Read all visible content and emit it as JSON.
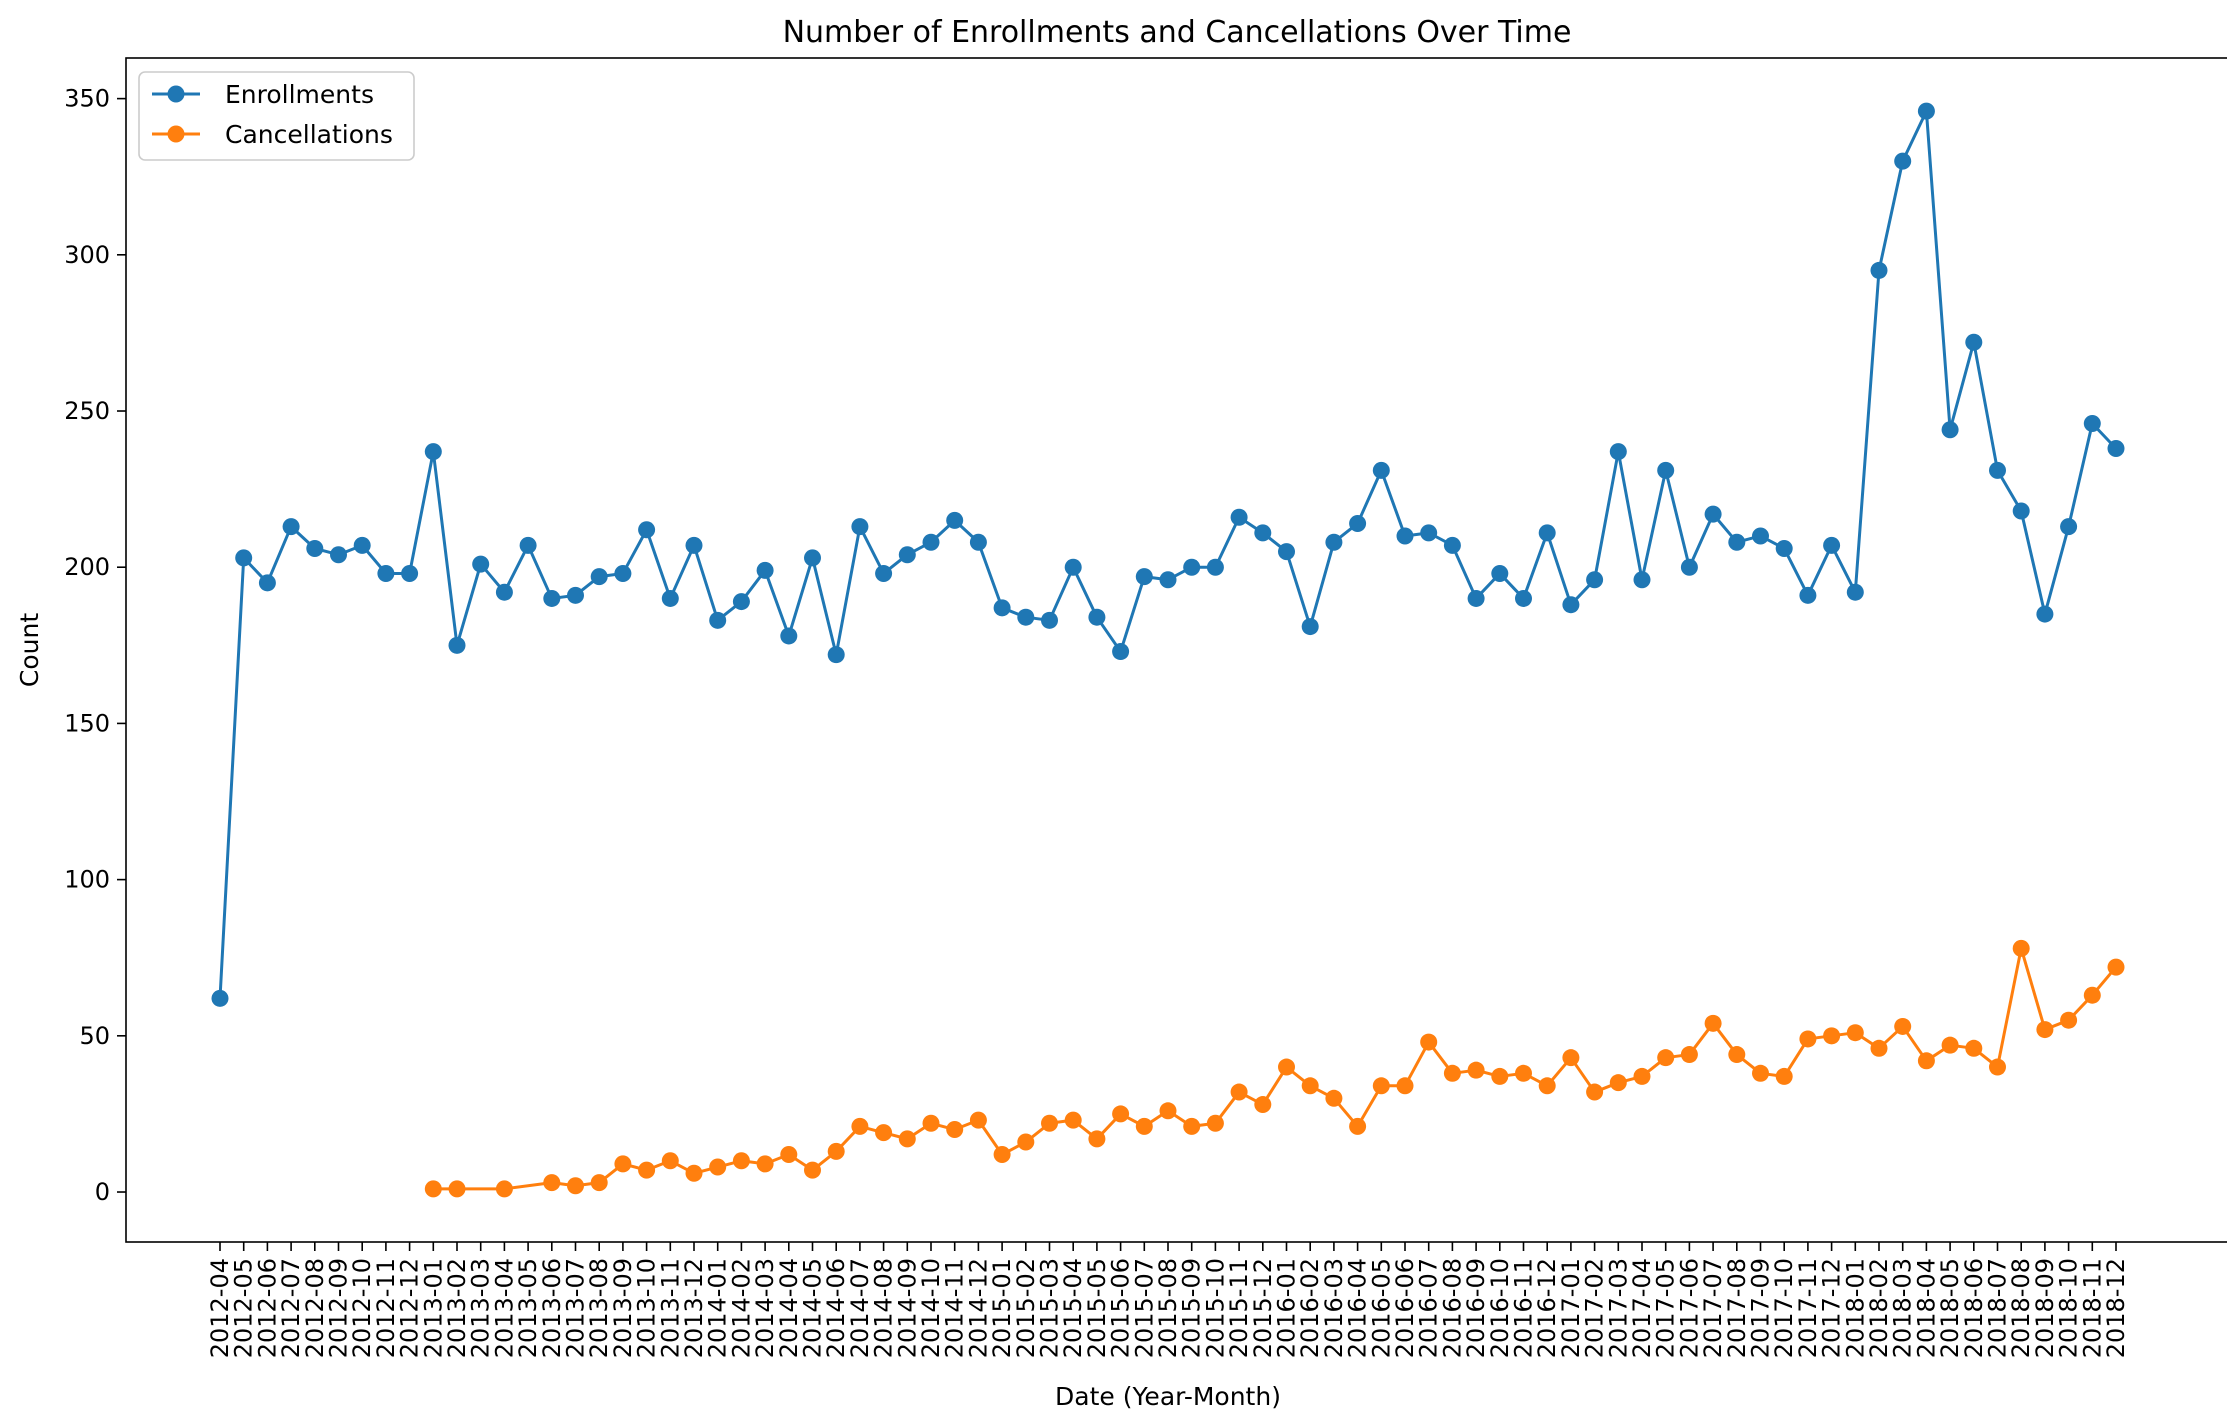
{
  "chart_data": {
    "type": "line",
    "title": "Number of Enrollments and Cancellations Over Time",
    "xlabel": "Date (Year-Month)",
    "ylabel": "Count",
    "ylim": [
      -16,
      363
    ],
    "yticks": [
      0,
      50,
      100,
      150,
      200,
      250,
      300,
      350
    ],
    "grid": false,
    "legend_position": "top-left",
    "categories": [
      "2012-04",
      "2012-05",
      "2012-06",
      "2012-07",
      "2012-08",
      "2012-09",
      "2012-10",
      "2012-11",
      "2012-12",
      "2013-01",
      "2013-02",
      "2013-03",
      "2013-04",
      "2013-05",
      "2013-06",
      "2013-07",
      "2013-08",
      "2013-09",
      "2013-10",
      "2013-11",
      "2013-12",
      "2014-01",
      "2014-02",
      "2014-03",
      "2014-04",
      "2014-05",
      "2014-06",
      "2014-07",
      "2014-08",
      "2014-09",
      "2014-10",
      "2014-11",
      "2014-12",
      "2015-01",
      "2015-02",
      "2015-03",
      "2015-04",
      "2015-05",
      "2015-06",
      "2015-07",
      "2015-08",
      "2015-09",
      "2015-10",
      "2015-11",
      "2015-12",
      "2016-01",
      "2016-02",
      "2016-03",
      "2016-04",
      "2016-05",
      "2016-06",
      "2016-07",
      "2016-08",
      "2016-09",
      "2016-10",
      "2016-11",
      "2016-12",
      "2017-01",
      "2017-02",
      "2017-03",
      "2017-04",
      "2017-05",
      "2017-06",
      "2017-07",
      "2017-08",
      "2017-09",
      "2017-10",
      "2017-11",
      "2017-12",
      "2018-01",
      "2018-02",
      "2018-03",
      "2018-04",
      "2018-05",
      "2018-06",
      "2018-07",
      "2018-08",
      "2018-09",
      "2018-10",
      "2018-11",
      "2018-12"
    ],
    "series": [
      {
        "name": "Enrollments",
        "color": "#1f77b4",
        "values": [
          62,
          203,
          195,
          213,
          206,
          204,
          207,
          198,
          198,
          237,
          175,
          201,
          192,
          207,
          190,
          191,
          197,
          198,
          212,
          190,
          207,
          183,
          189,
          199,
          178,
          203,
          172,
          213,
          198,
          204,
          208,
          215,
          208,
          187,
          184,
          183,
          200,
          184,
          173,
          197,
          196,
          200,
          200,
          216,
          211,
          205,
          181,
          208,
          214,
          231,
          210,
          211,
          207,
          190,
          198,
          190,
          211,
          188,
          196,
          237,
          196,
          231,
          200,
          217,
          208,
          210,
          206,
          191,
          207,
          192,
          295,
          330,
          346,
          244,
          272,
          231,
          218,
          185,
          213,
          246,
          238
        ]
      },
      {
        "name": "Cancellations",
        "color": "#ff7f0e",
        "values": [
          null,
          null,
          null,
          null,
          null,
          null,
          null,
          null,
          null,
          1,
          1,
          null,
          1,
          null,
          3,
          2,
          3,
          9,
          7,
          10,
          6,
          8,
          10,
          9,
          12,
          7,
          13,
          21,
          19,
          17,
          22,
          20,
          23,
          12,
          16,
          22,
          23,
          17,
          25,
          21,
          26,
          21,
          22,
          32,
          28,
          40,
          34,
          30,
          21,
          34,
          34,
          48,
          38,
          39,
          37,
          38,
          34,
          43,
          32,
          35,
          37,
          43,
          44,
          54,
          44,
          38,
          37,
          49,
          50,
          51,
          46,
          53,
          42,
          47,
          46,
          40,
          78,
          52,
          55,
          63,
          72
        ]
      }
    ]
  }
}
